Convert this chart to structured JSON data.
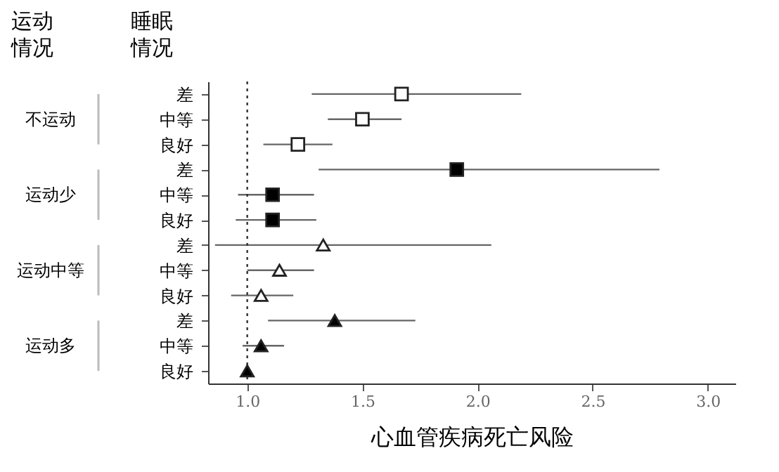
{
  "chart_data": {
    "type": "scatter",
    "orientation": "horizontal",
    "xlabel": "心血管疾病死亡风险",
    "ylabel": "睡眠情况",
    "legend_title": "运动情况",
    "categories": [
      "差",
      "中等",
      "良好",
      "差",
      "中等",
      "良好",
      "差",
      "中等",
      "良好",
      "差",
      "中等",
      "良好"
    ],
    "series": [
      {
        "color": "#ffffff",
        "marker": "square",
        "values": [
          1.67,
          1.5,
          1.22,
          null,
          null,
          null,
          null,
          null,
          null,
          null,
          null,
          null
        ],
        "errors": [
          [
            1.28,
            2.19
          ],
          [
            1.35,
            1.67
          ],
          [
            1.07,
            1.37
          ],
          null,
          null,
          null,
          null,
          null,
          null,
          null,
          null,
          null
        ]
      },
      {
        "color": "#000000",
        "marker": "square",
        "values": [
          null,
          null,
          null,
          1.91,
          1.11,
          1.11,
          null,
          null,
          null,
          null,
          null,
          null
        ],
        "errors": [
          null,
          null,
          null,
          [
            1.31,
            2.79
          ],
          [
            0.96,
            1.29
          ],
          [
            0.95,
            1.3
          ],
          null,
          null,
          null,
          null,
          null,
          null
        ]
      },
      {
        "color": "#ffffff",
        "marker": "triangle",
        "values": [
          null,
          null,
          null,
          null,
          null,
          null,
          1.33,
          1.14,
          1.06,
          null,
          null,
          null
        ],
        "errors": [
          null,
          null,
          null,
          null,
          null,
          null,
          [
            0.86,
            2.06
          ],
          [
            1.0,
            1.29
          ],
          [
            0.93,
            1.2
          ],
          null,
          null,
          null
        ]
      },
      {
        "color": "#000000",
        "marker": "triangle",
        "values": [
          null,
          null,
          null,
          null,
          null,
          null,
          null,
          null,
          null,
          1.38,
          1.06,
          1.0
        ],
        "errors": [
          null,
          null,
          null,
          null,
          null,
          null,
          null,
          null,
          null,
          [
            1.09,
            1.73
          ],
          [
            0.98,
            1.16
          ],
          null
        ]
      }
    ],
    "xlim": [
      0.83,
      3.12
    ],
    "xticks": [
      {
        "value": 1,
        "label": "1.0"
      },
      {
        "value": 1.5,
        "label": "1.5"
      },
      {
        "value": 2,
        "label": "2.0"
      },
      {
        "value": 2.5,
        "label": "2.5"
      },
      {
        "value": 3,
        "label": "3.0"
      }
    ],
    "ref_lines": [
      {
        "axis": "x",
        "value": 1,
        "line_style": "dotted",
        "color": "#333333"
      }
    ],
    "annotations": [
      "不运动",
      "运动少",
      "运动中等",
      "运动多"
    ],
    "grid": false,
    "legend": false
  }
}
